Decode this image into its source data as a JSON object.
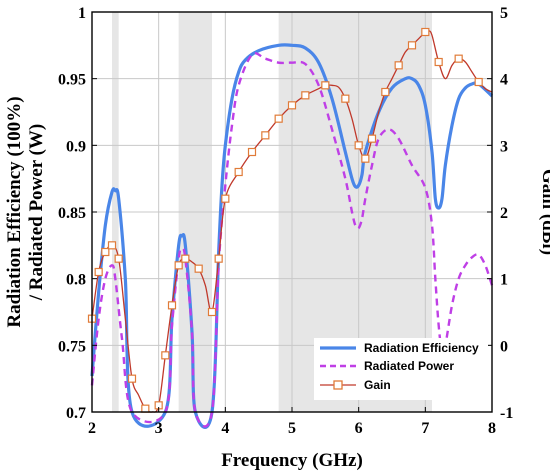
{
  "chart_data": {
    "type": "line",
    "xlabel": "Frequency (GHz)",
    "ylabel_left_line1": "Radiation Efficiency (100%)",
    "ylabel_left_line2": "/ Radiated Power (W)",
    "ylabel_right": "Gain (dBi)",
    "xlim": [
      2,
      8
    ],
    "ylim_left": [
      0.7,
      1.0
    ],
    "ylim_right": [
      -1,
      5
    ],
    "x_ticks": [
      "2",
      "3",
      "4",
      "5",
      "6",
      "7",
      "8"
    ],
    "y_left_ticks": [
      "0.7",
      "0.75",
      "0.8",
      "0.85",
      "0.9",
      "0.95",
      "1"
    ],
    "y_right_ticks": [
      "-1",
      "0",
      "1",
      "2",
      "3",
      "4",
      "5"
    ],
    "grid": true,
    "legend_position": "bottom-right",
    "shaded_bands": [
      [
        2.3,
        2.4
      ],
      [
        3.3,
        3.8
      ],
      [
        4.8,
        7.1
      ]
    ],
    "series": [
      {
        "name": "Radiation Efficiency",
        "axis": "left",
        "color": "#4a86e8",
        "style": "solid",
        "x": [
          2.0,
          2.1,
          2.2,
          2.3,
          2.35,
          2.4,
          2.5,
          2.6,
          3.1,
          3.2,
          3.3,
          3.35,
          3.4,
          3.5,
          3.55,
          3.8,
          3.9,
          3.95,
          4.0,
          4.1,
          4.2,
          4.3,
          4.5,
          4.8,
          5.0,
          5.2,
          5.4,
          5.6,
          5.8,
          5.9,
          5.95,
          6.0,
          6.05,
          6.1,
          6.3,
          6.5,
          6.7,
          6.8,
          6.9,
          7.0,
          7.1,
          7.15,
          7.2,
          7.25,
          7.3,
          7.4,
          7.5,
          7.6,
          7.7,
          7.8,
          8.0
        ],
        "values": [
          0.727,
          0.79,
          0.84,
          0.865,
          0.866,
          0.86,
          0.8,
          0.7,
          0.7,
          0.77,
          0.825,
          0.832,
          0.825,
          0.76,
          0.7,
          0.7,
          0.82,
          0.87,
          0.9,
          0.935,
          0.955,
          0.964,
          0.971,
          0.975,
          0.975,
          0.973,
          0.962,
          0.935,
          0.895,
          0.875,
          0.869,
          0.87,
          0.878,
          0.895,
          0.925,
          0.943,
          0.95,
          0.95,
          0.945,
          0.93,
          0.895,
          0.86,
          0.853,
          0.86,
          0.885,
          0.915,
          0.935,
          0.943,
          0.946,
          0.946,
          0.937
        ]
      },
      {
        "name": "Radiated Power",
        "axis": "left",
        "color": "#bf3fe6",
        "style": "dashed",
        "x": [
          2.0,
          2.1,
          2.2,
          2.3,
          2.35,
          2.45,
          2.6,
          3.1,
          3.2,
          3.3,
          3.35,
          3.4,
          3.5,
          3.55,
          3.8,
          3.9,
          4.0,
          4.1,
          4.2,
          4.4,
          4.6,
          4.8,
          5.0,
          5.2,
          5.4,
          5.6,
          5.8,
          5.9,
          5.95,
          6.0,
          6.05,
          6.1,
          6.2,
          6.3,
          6.45,
          6.6,
          6.8,
          7.0,
          7.1,
          7.15,
          7.2,
          7.25,
          7.3,
          7.4,
          7.5,
          7.6,
          7.7,
          7.8,
          7.9,
          8.0
        ],
        "values": [
          0.72,
          0.77,
          0.8,
          0.81,
          0.8,
          0.755,
          0.7,
          0.7,
          0.765,
          0.815,
          0.822,
          0.815,
          0.76,
          0.7,
          0.7,
          0.81,
          0.87,
          0.915,
          0.945,
          0.968,
          0.965,
          0.962,
          0.962,
          0.961,
          0.945,
          0.912,
          0.875,
          0.85,
          0.84,
          0.838,
          0.845,
          0.86,
          0.885,
          0.905,
          0.912,
          0.905,
          0.885,
          0.868,
          0.84,
          0.8,
          0.765,
          0.745,
          0.75,
          0.78,
          0.8,
          0.81,
          0.816,
          0.818,
          0.81,
          0.795
        ]
      },
      {
        "name": "Gain",
        "axis": "right",
        "color": "#c0392b",
        "marker_color": "#e07b39",
        "style": "solid-marker",
        "x": [
          2.0,
          2.1,
          2.2,
          2.3,
          2.4,
          2.5,
          2.6,
          2.7,
          2.8,
          2.9,
          3.0,
          3.1,
          3.2,
          3.3,
          3.4,
          3.5,
          3.6,
          3.7,
          3.8,
          3.9,
          4.0,
          4.2,
          4.4,
          4.6,
          4.8,
          5.0,
          5.2,
          5.4,
          5.5,
          5.6,
          5.7,
          5.8,
          5.9,
          6.0,
          6.1,
          6.2,
          6.3,
          6.4,
          6.5,
          6.6,
          6.7,
          6.8,
          6.9,
          7.0,
          7.05,
          7.1,
          7.2,
          7.3,
          7.4,
          7.5,
          7.6,
          7.7,
          7.8,
          7.9,
          8.0
        ],
        "values": [
          0.4,
          1.1,
          1.4,
          1.5,
          1.3,
          0.4,
          -0.5,
          -0.75,
          -0.95,
          -1.0,
          -0.9,
          -0.15,
          0.6,
          1.2,
          1.3,
          1.25,
          1.15,
          0.9,
          0.5,
          1.3,
          2.2,
          2.6,
          2.9,
          3.15,
          3.4,
          3.6,
          3.75,
          3.85,
          3.9,
          3.9,
          3.87,
          3.7,
          3.4,
          3.0,
          2.8,
          3.1,
          3.5,
          3.8,
          4.0,
          4.2,
          4.4,
          4.5,
          4.6,
          4.7,
          4.72,
          4.65,
          4.25,
          4.0,
          4.2,
          4.3,
          4.25,
          4.1,
          3.95,
          3.85,
          3.8
        ],
        "marker_x": [
          2.0,
          2.1,
          2.2,
          2.3,
          2.4,
          2.6,
          2.8,
          3.0,
          3.1,
          3.2,
          3.3,
          3.4,
          3.6,
          3.8,
          3.9,
          4.0,
          4.2,
          4.4,
          4.6,
          4.8,
          5.0,
          5.2,
          5.5,
          5.8,
          6.0,
          6.1,
          6.2,
          6.4,
          6.6,
          6.8,
          7.0,
          7.2,
          7.5,
          7.8
        ]
      }
    ]
  }
}
